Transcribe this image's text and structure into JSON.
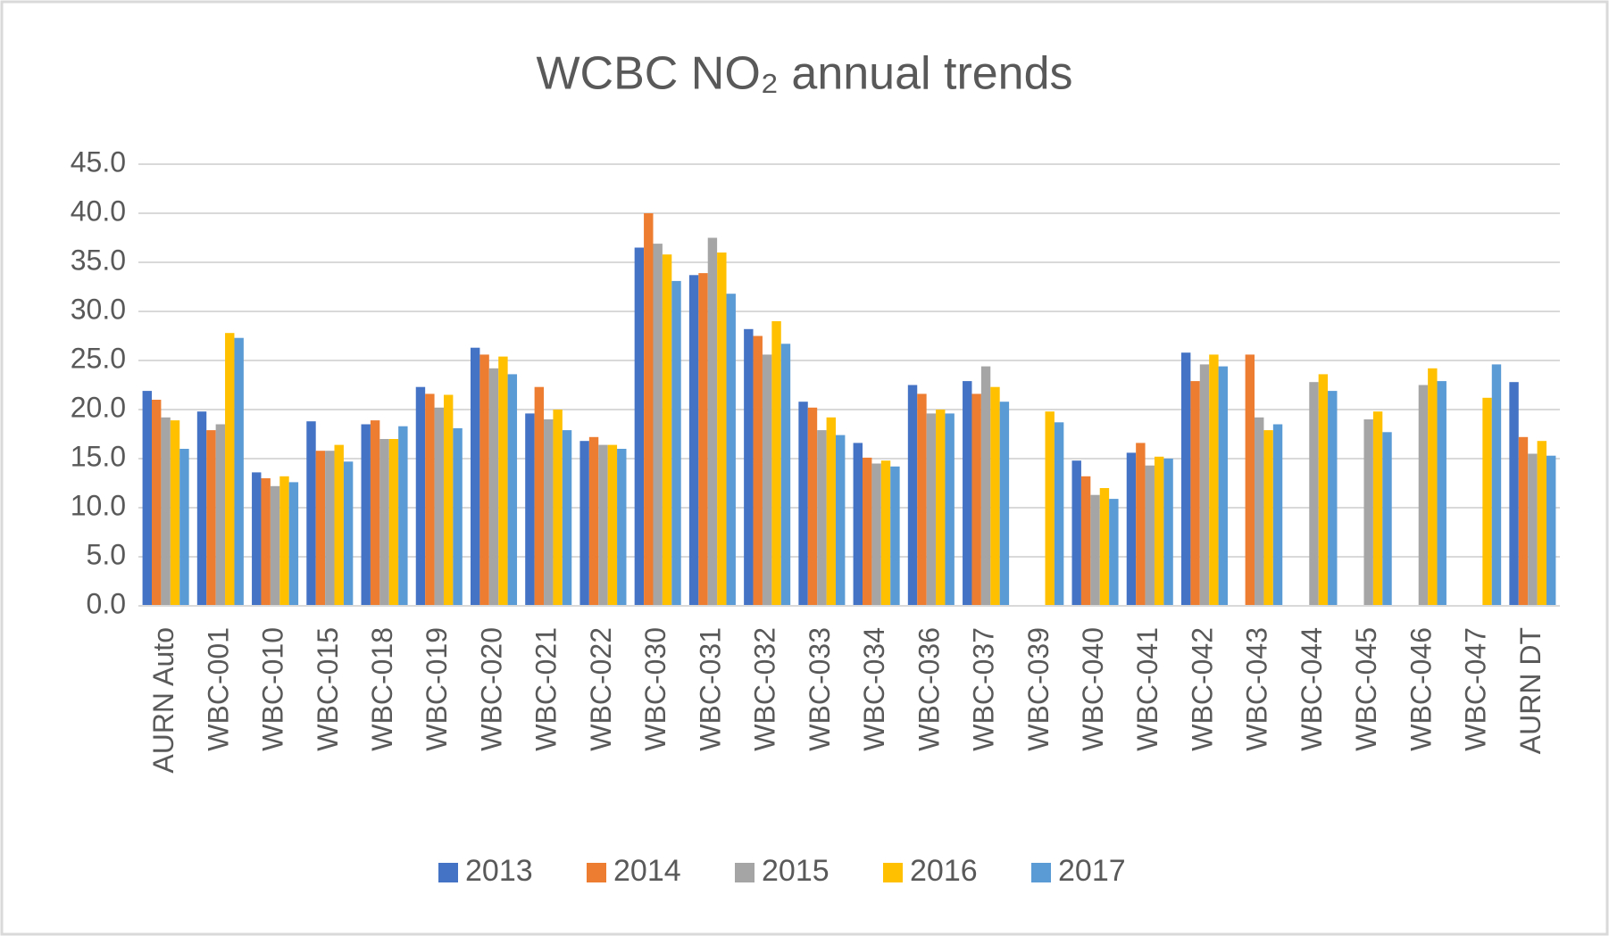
{
  "chart_data": {
    "type": "bar",
    "title": "WCBC NO₂ annual trends",
    "categories": [
      "AURN Auto",
      "WBC-001",
      "WBC-010",
      "WBC-015",
      "WBC-018",
      "WBC-019",
      "WBC-020",
      "WBC-021",
      "WBC-022",
      "WBC-030",
      "WBC-031",
      "WBC-032",
      "WBC-033",
      "WBC-034",
      "WBC-036",
      "WBC-037",
      "WBC-039",
      "WBC-040",
      "WBC-041",
      "WBC-042",
      "WBC-043",
      "WBC-044",
      "WBC-045",
      "WBC-046",
      "WBC-047",
      "AURN DT"
    ],
    "series": [
      {
        "name": "2013",
        "color": "#4472c4",
        "values": [
          21.9,
          19.8,
          13.6,
          18.8,
          18.5,
          22.3,
          26.3,
          19.6,
          16.8,
          36.5,
          33.7,
          28.2,
          20.8,
          16.6,
          22.5,
          22.9,
          null,
          14.8,
          15.6,
          25.8,
          null,
          null,
          null,
          null,
          null,
          22.8
        ]
      },
      {
        "name": "2014",
        "color": "#ed7d31",
        "values": [
          21.0,
          17.9,
          13.0,
          15.8,
          18.9,
          21.6,
          25.6,
          22.3,
          17.2,
          40.0,
          33.9,
          27.5,
          20.2,
          15.1,
          21.6,
          21.6,
          null,
          13.2,
          16.6,
          22.9,
          25.6,
          null,
          null,
          null,
          null,
          17.2
        ]
      },
      {
        "name": "2015",
        "color": "#a5a5a5",
        "values": [
          19.2,
          18.5,
          12.2,
          15.8,
          17.0,
          20.2,
          24.2,
          19.0,
          16.4,
          36.9,
          37.5,
          25.6,
          17.9,
          14.5,
          19.6,
          24.4,
          null,
          11.3,
          14.3,
          24.6,
          19.2,
          22.8,
          19.0,
          22.5,
          null,
          15.5
        ]
      },
      {
        "name": "2016",
        "color": "#ffc000",
        "values": [
          18.9,
          27.8,
          13.2,
          16.4,
          17.0,
          21.5,
          25.4,
          20.0,
          16.4,
          35.8,
          36.0,
          29.0,
          19.2,
          14.8,
          20.0,
          22.3,
          19.8,
          12.0,
          15.2,
          25.6,
          17.9,
          23.6,
          19.8,
          24.2,
          21.2,
          16.8
        ]
      },
      {
        "name": "2017",
        "color": "#5b9bd5",
        "values": [
          16.0,
          27.3,
          12.6,
          14.7,
          18.3,
          18.1,
          23.6,
          17.9,
          16.0,
          33.1,
          31.8,
          26.7,
          17.4,
          14.2,
          19.6,
          20.8,
          18.7,
          10.9,
          15.0,
          24.4,
          18.5,
          21.9,
          17.7,
          22.9,
          24.6,
          15.3
        ]
      }
    ],
    "ylim": [
      0,
      45
    ],
    "yticks": [
      {
        "value": 0,
        "label": "0.0"
      },
      {
        "value": 5,
        "label": "5.0"
      },
      {
        "value": 10,
        "label": "10.0"
      },
      {
        "value": 15,
        "label": "15.0"
      },
      {
        "value": 20,
        "label": "20.0"
      },
      {
        "value": 25,
        "label": "25.0"
      },
      {
        "value": 30,
        "label": "30.0"
      },
      {
        "value": 35,
        "label": "35.0"
      },
      {
        "value": 40,
        "label": "40.0"
      },
      {
        "value": 45,
        "label": "45.0"
      }
    ],
    "grid": true,
    "legend": "bottom"
  }
}
